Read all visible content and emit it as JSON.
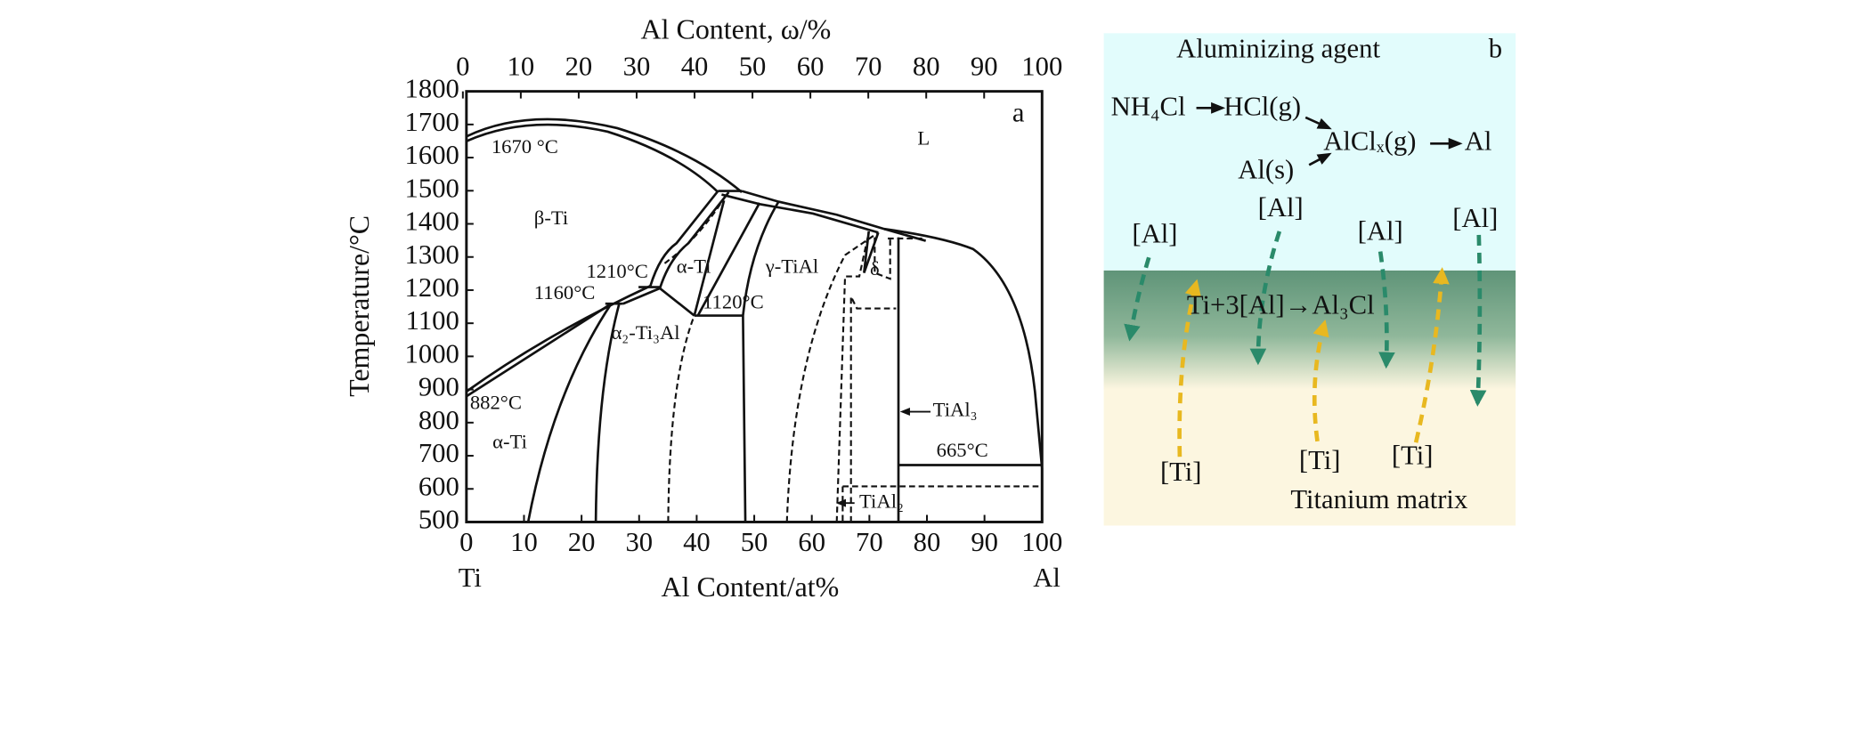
{
  "panel_a": {
    "top_axis_title": "Al Content, ω/%",
    "bottom_axis_title": "Al Content/at%",
    "y_axis_title": "Temperature/°C",
    "top_ticks": [
      "0",
      "10",
      "20",
      "30",
      "40",
      "50",
      "60",
      "70",
      "80",
      "90",
      "100"
    ],
    "bottom_ticks": [
      "0",
      "10",
      "20",
      "30",
      "40",
      "50",
      "60",
      "70",
      "80",
      "90",
      "100"
    ],
    "y_ticks": [
      "1800",
      "1700",
      "1600",
      "1500",
      "1400",
      "1300",
      "1200",
      "1100",
      "1000",
      "900",
      "800",
      "700",
      "600",
      "500"
    ],
    "end_left": "Ti",
    "end_right": "Al",
    "panel_label": "a",
    "labels": [
      "1670 °C",
      "L",
      "β-Ti",
      "1210°C",
      "α-Ti",
      "γ-TiAl",
      "δ",
      "1160°C",
      "1120°C",
      "α₂-Ti₃Al",
      "882°C",
      "α-Ti",
      "TiAl₃",
      "665°C",
      "TiAl₂"
    ]
  },
  "panel_b": {
    "title": "Aluminizing agent",
    "panel_label": "b",
    "reactions": [
      "NH₄Cl",
      "HCl(g)",
      "AlClₓ(g)",
      "Al",
      "Al(s)"
    ],
    "al_labels": [
      "[Al]",
      "[Al]",
      "[Al]",
      "[Al]"
    ],
    "equation": "Ti+3[Al]→Al₃Cl",
    "ti_labels": [
      "[Ti]",
      "[Ti]",
      "[Ti]"
    ],
    "matrix": "Titanium matrix"
  }
}
